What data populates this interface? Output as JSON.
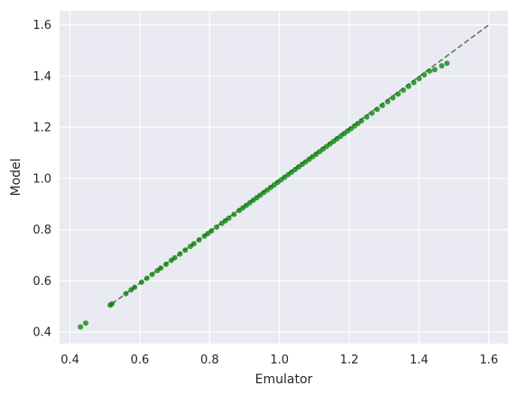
{
  "chart_data": {
    "type": "scatter",
    "title": "",
    "xlabel": "Emulator",
    "ylabel": "Model",
    "xlim": [
      0.37,
      1.655
    ],
    "ylim": [
      0.355,
      1.655
    ],
    "x_ticks": [
      0.4,
      0.6,
      0.8,
      1.0,
      1.2,
      1.4,
      1.6
    ],
    "y_ticks": [
      0.4,
      0.6,
      0.8,
      1.0,
      1.2,
      1.4,
      1.6
    ],
    "x_tick_labels": [
      "0.4",
      "0.6",
      "0.8",
      "1.0",
      "1.2",
      "1.4",
      "1.6"
    ],
    "y_tick_labels": [
      "0.4",
      "0.6",
      "0.8",
      "1.0",
      "1.2",
      "1.4",
      "1.6"
    ],
    "grid": true,
    "background": "#eaeaf2",
    "grid_color": "#ffffff",
    "point_color": "#008000",
    "reference_line": {
      "style": "dashed",
      "color": "#6e6e6e",
      "from": [
        0.52,
        0.51
      ],
      "to": [
        1.6,
        1.6
      ]
    },
    "series": [
      {
        "points": [
          [
            0.43,
            0.42
          ],
          [
            0.445,
            0.435
          ],
          [
            0.515,
            0.505
          ],
          [
            0.52,
            0.51
          ],
          [
            0.56,
            0.55
          ],
          [
            0.575,
            0.565
          ],
          [
            0.585,
            0.575
          ],
          [
            0.605,
            0.595
          ],
          [
            0.62,
            0.61
          ],
          [
            0.635,
            0.625
          ],
          [
            0.65,
            0.64
          ],
          [
            0.66,
            0.65
          ],
          [
            0.675,
            0.665
          ],
          [
            0.69,
            0.68
          ],
          [
            0.7,
            0.69
          ],
          [
            0.715,
            0.705
          ],
          [
            0.73,
            0.72
          ],
          [
            0.745,
            0.735
          ],
          [
            0.755,
            0.745
          ],
          [
            0.77,
            0.76
          ],
          [
            0.785,
            0.775
          ],
          [
            0.795,
            0.785
          ],
          [
            0.805,
            0.795
          ],
          [
            0.82,
            0.81
          ],
          [
            0.835,
            0.825
          ],
          [
            0.845,
            0.835
          ],
          [
            0.855,
            0.845
          ],
          [
            0.87,
            0.86
          ],
          [
            0.885,
            0.875
          ],
          [
            0.895,
            0.885
          ],
          [
            0.905,
            0.895
          ],
          [
            0.915,
            0.905
          ],
          [
            0.925,
            0.915
          ],
          [
            0.935,
            0.925
          ],
          [
            0.945,
            0.935
          ],
          [
            0.955,
            0.945
          ],
          [
            0.965,
            0.955
          ],
          [
            0.975,
            0.965
          ],
          [
            0.985,
            0.975
          ],
          [
            0.995,
            0.985
          ],
          [
            1.005,
            0.995
          ],
          [
            1.015,
            1.005
          ],
          [
            1.025,
            1.015
          ],
          [
            1.035,
            1.025
          ],
          [
            1.045,
            1.035
          ],
          [
            1.055,
            1.045
          ],
          [
            1.065,
            1.055
          ],
          [
            1.075,
            1.065
          ],
          [
            1.085,
            1.075
          ],
          [
            1.095,
            1.085
          ],
          [
            1.105,
            1.095
          ],
          [
            1.115,
            1.105
          ],
          [
            1.125,
            1.115
          ],
          [
            1.135,
            1.125
          ],
          [
            1.145,
            1.135
          ],
          [
            1.155,
            1.145
          ],
          [
            1.165,
            1.155
          ],
          [
            1.175,
            1.165
          ],
          [
            1.185,
            1.175
          ],
          [
            1.195,
            1.185
          ],
          [
            1.205,
            1.195
          ],
          [
            1.215,
            1.205
          ],
          [
            1.225,
            1.215
          ],
          [
            1.235,
            1.225
          ],
          [
            1.25,
            1.24
          ],
          [
            1.265,
            1.255
          ],
          [
            1.28,
            1.27
          ],
          [
            1.295,
            1.285
          ],
          [
            1.31,
            1.3
          ],
          [
            1.325,
            1.315
          ],
          [
            1.34,
            1.33
          ],
          [
            1.355,
            1.345
          ],
          [
            1.37,
            1.36
          ],
          [
            1.385,
            1.375
          ],
          [
            1.4,
            1.39
          ],
          [
            1.415,
            1.405
          ],
          [
            1.43,
            1.42
          ],
          [
            1.445,
            1.425
          ],
          [
            1.465,
            1.44
          ],
          [
            1.48,
            1.45
          ]
        ]
      }
    ]
  }
}
